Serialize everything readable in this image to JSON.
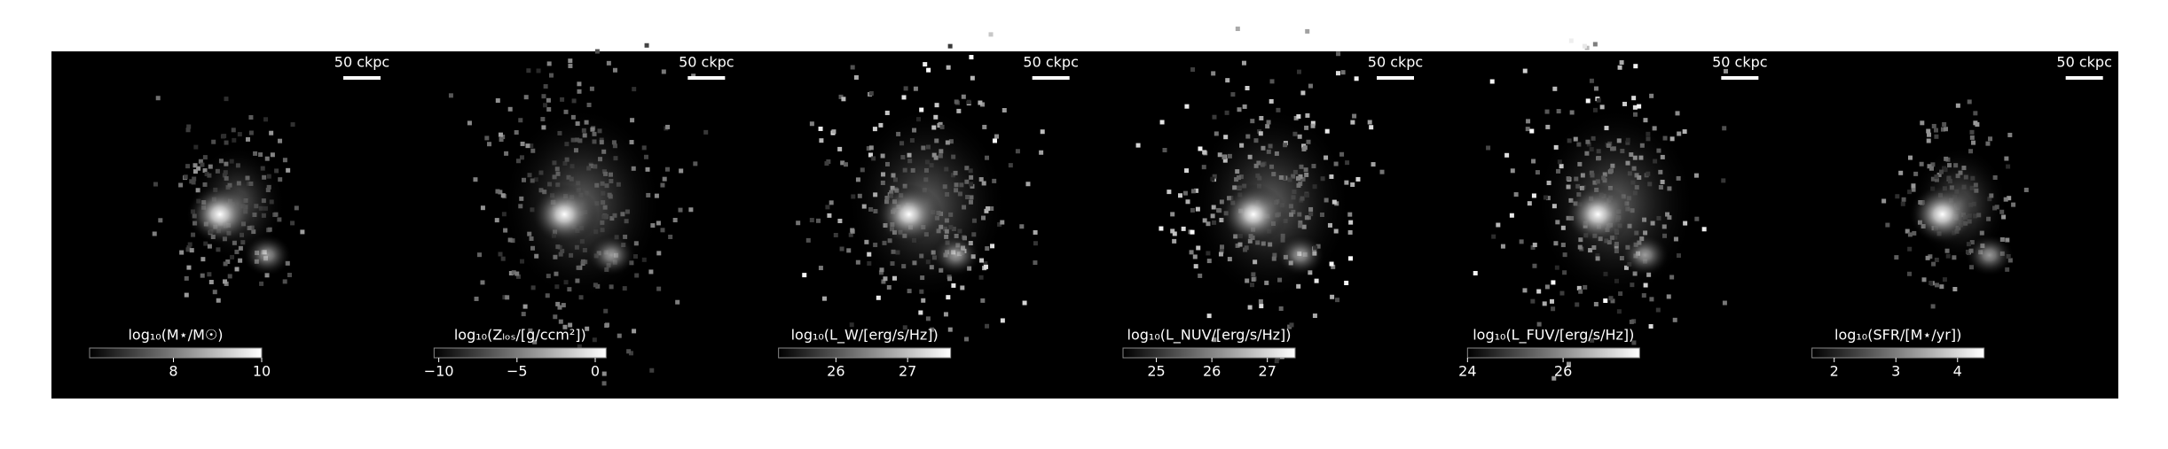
{
  "chart_data": [
    {
      "type": "image",
      "scalebar": "50 ckpc",
      "colorbar_label": "log₁₀(M⋆/M☉)",
      "clim": [
        6.1,
        10
      ],
      "cticks": [
        8,
        10
      ]
    },
    {
      "type": "image",
      "scalebar": "50 ckpc",
      "colorbar_label": "log₁₀(Zₗₒₛ/[g/ccm²])",
      "clim": [
        -10.3,
        0.7
      ],
      "cticks": [
        {
          "value": -10,
          "label": "−10"
        },
        {
          "value": -5,
          "label": "−5"
        },
        0
      ]
    },
    {
      "type": "image",
      "scalebar": "50 ckpc",
      "colorbar_label": "log₁₀(L_W/[erg/s/Hz])",
      "clim": [
        25.2,
        27.6
      ],
      "cticks": [
        26,
        27
      ]
    },
    {
      "type": "image",
      "scalebar": "50 ckpc",
      "colorbar_label": "log₁₀(L_NUV/[erg/s/Hz])",
      "clim": [
        24.4,
        27.5
      ],
      "cticks": [
        25,
        26,
        27
      ]
    },
    {
      "type": "image",
      "scalebar": "50 ckpc",
      "colorbar_label": "log₁₀(L_FUV/[erg/s/Hz])",
      "clim": [
        24,
        27.6
      ],
      "cticks": [
        24,
        26
      ]
    },
    {
      "type": "image",
      "scalebar": "50 ckpc",
      "colorbar_label": "log₁₀(SFR/[M⋆/yr])",
      "clim": [
        1.64,
        4.43
      ],
      "cticks": [
        2,
        3,
        4
      ]
    }
  ]
}
